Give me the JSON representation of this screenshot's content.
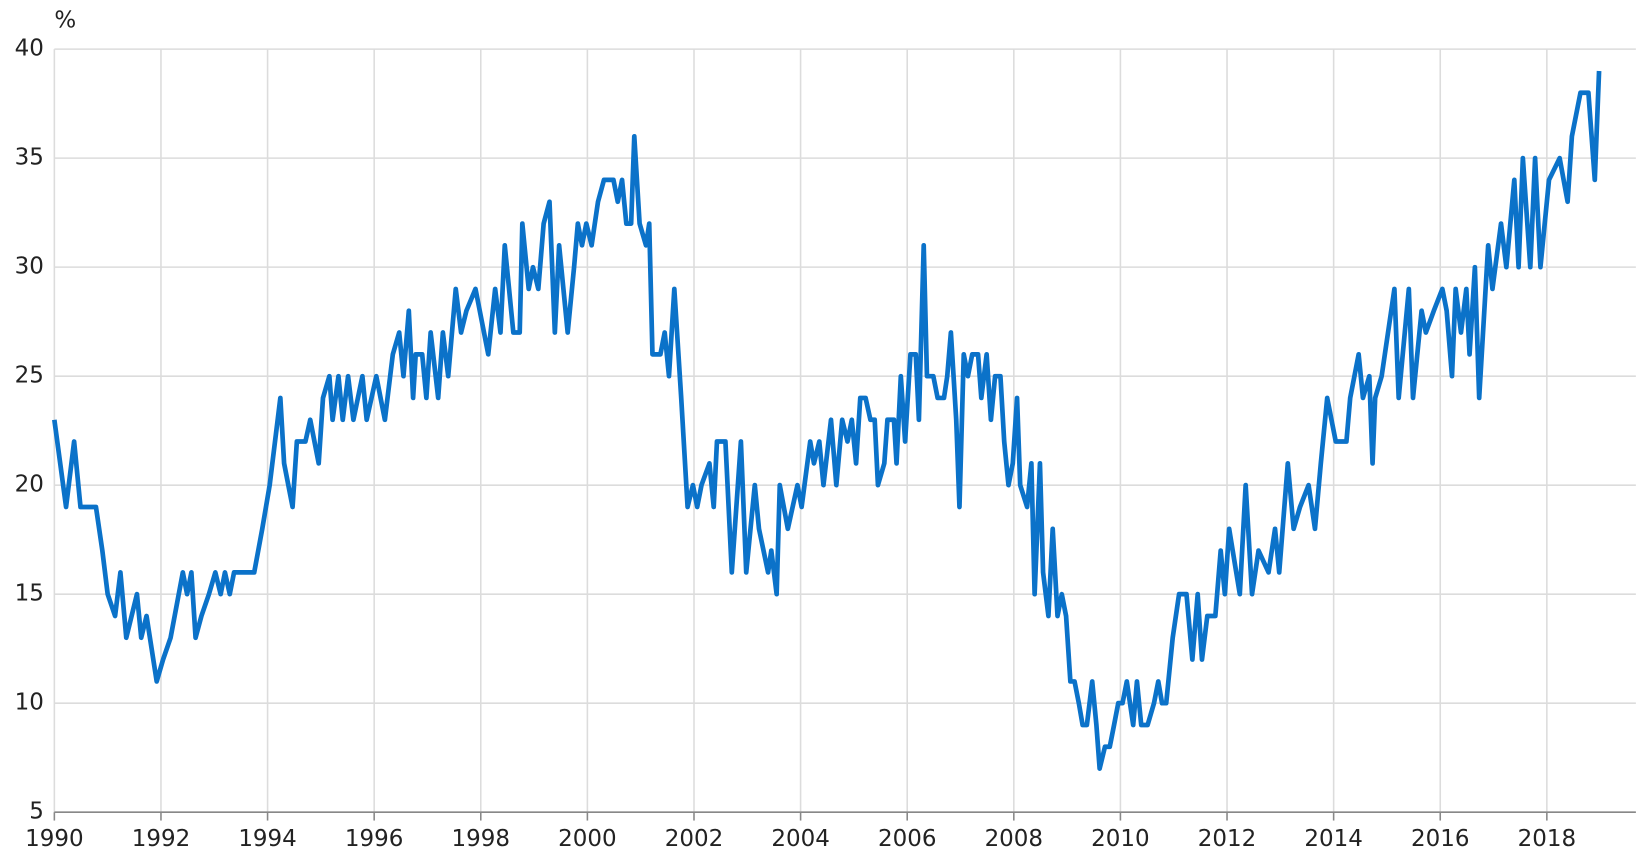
{
  "chart_data": {
    "type": "line",
    "y_unit": "%",
    "x": [
      1990.0,
      1990.22,
      1990.37,
      1990.49,
      1990.78,
      1990.9,
      1991.0,
      1991.14,
      1991.24,
      1991.35,
      1991.55,
      1991.63,
      1991.73,
      1991.92,
      1992.04,
      1992.18,
      1992.41,
      1992.49,
      1992.57,
      1992.65,
      1992.76,
      1992.9,
      1993.02,
      1993.12,
      1993.2,
      1993.29,
      1993.37,
      1993.75,
      1993.9,
      1994.04,
      1994.24,
      1994.31,
      1994.47,
      1994.55,
      1994.71,
      1994.8,
      1994.96,
      1995.04,
      1995.16,
      1995.22,
      1995.33,
      1995.41,
      1995.51,
      1995.61,
      1995.78,
      1995.86,
      1996.04,
      1996.2,
      1996.35,
      1996.47,
      1996.55,
      1996.65,
      1996.73,
      1996.78,
      1996.9,
      1996.98,
      1997.06,
      1997.2,
      1997.29,
      1997.39,
      1997.53,
      1997.63,
      1997.73,
      1997.9,
      1998.14,
      1998.27,
      1998.37,
      1998.45,
      1998.61,
      1998.73,
      1998.78,
      1998.9,
      1998.98,
      1999.08,
      1999.18,
      1999.29,
      1999.39,
      1999.47,
      1999.63,
      1999.75,
      1999.82,
      1999.9,
      1999.98,
      2000.08,
      2000.2,
      2000.31,
      2000.49,
      2000.57,
      2000.65,
      2000.73,
      2000.82,
      2000.88,
      2000.98,
      2001.1,
      2001.16,
      2001.22,
      2001.37,
      2001.45,
      2001.53,
      2001.63,
      2001.76,
      2001.88,
      2001.98,
      2002.06,
      2002.14,
      2002.29,
      2002.37,
      2002.43,
      2002.59,
      2002.71,
      2002.88,
      2002.98,
      2003.14,
      2003.22,
      2003.39,
      2003.45,
      2003.55,
      2003.61,
      2003.76,
      2003.94,
      2004.02,
      2004.18,
      2004.25,
      2004.35,
      2004.43,
      2004.57,
      2004.67,
      2004.78,
      2004.88,
      2004.96,
      2005.04,
      2005.12,
      2005.22,
      2005.31,
      2005.39,
      2005.45,
      2005.57,
      2005.63,
      2005.75,
      2005.8,
      2005.88,
      2005.96,
      2006.06,
      2006.16,
      2006.22,
      2006.31,
      2006.37,
      2006.49,
      2006.57,
      2006.69,
      2006.75,
      2006.82,
      2006.92,
      2006.98,
      2007.06,
      2007.14,
      2007.22,
      2007.33,
      2007.39,
      2007.49,
      2007.57,
      2007.65,
      2007.75,
      2007.82,
      2007.9,
      2007.98,
      2008.06,
      2008.12,
      2008.25,
      2008.33,
      2008.39,
      2008.49,
      2008.55,
      2008.65,
      2008.73,
      2008.82,
      2008.9,
      2008.98,
      2009.06,
      2009.14,
      2009.22,
      2009.29,
      2009.37,
      2009.47,
      2009.55,
      2009.61,
      2009.71,
      2009.8,
      2009.88,
      2009.96,
      2010.04,
      2010.12,
      2010.24,
      2010.31,
      2010.39,
      2010.51,
      2010.63,
      2010.71,
      2010.78,
      2010.86,
      2010.98,
      2011.1,
      2011.24,
      2011.35,
      2011.45,
      2011.53,
      2011.63,
      2011.78,
      2011.88,
      2011.96,
      2012.04,
      2012.24,
      2012.35,
      2012.47,
      2012.59,
      2012.78,
      2012.9,
      2012.98,
      2013.14,
      2013.25,
      2013.37,
      2013.53,
      2013.65,
      2013.76,
      2013.88,
      2014.04,
      2014.24,
      2014.31,
      2014.47,
      2014.55,
      2014.67,
      2014.73,
      2014.78,
      2014.9,
      2015.14,
      2015.22,
      2015.41,
      2015.49,
      2015.65,
      2015.73,
      2015.88,
      2016.04,
      2016.12,
      2016.22,
      2016.29,
      2016.39,
      2016.49,
      2016.55,
      2016.65,
      2016.73,
      2016.9,
      2016.98,
      2017.14,
      2017.24,
      2017.39,
      2017.47,
      2017.55,
      2017.69,
      2017.78,
      2017.88,
      2018.04,
      2018.24,
      2018.39,
      2018.47,
      2018.63,
      2018.78,
      2018.9,
      2018.98
    ],
    "series": [
      {
        "color": "#0b72c9",
        "values": [
          23,
          19,
          22,
          19,
          19,
          17,
          15,
          14,
          16,
          13,
          15,
          13,
          14,
          11,
          12,
          13,
          16,
          15,
          16,
          13,
          14,
          15,
          16,
          15,
          16,
          15,
          16,
          16,
          18,
          20,
          24,
          21,
          19,
          22,
          22,
          23,
          21,
          24,
          25,
          23,
          25,
          23,
          25,
          23,
          25,
          23,
          25,
          23,
          26,
          27,
          25,
          28,
          24,
          26,
          26,
          24,
          27,
          24,
          27,
          25,
          29,
          27,
          28,
          29,
          26,
          29,
          27,
          31,
          27,
          27,
          32,
          29,
          30,
          29,
          32,
          33,
          27,
          31,
          27,
          30,
          32,
          31,
          32,
          31,
          33,
          34,
          34,
          33,
          34,
          32,
          32,
          36,
          32,
          31,
          32,
          26,
          26,
          27,
          25,
          29,
          24,
          19,
          20,
          19,
          20,
          21,
          19,
          22,
          22,
          16,
          22,
          16,
          20,
          18,
          16,
          17,
          15,
          20,
          18,
          20,
          19,
          22,
          21,
          22,
          20,
          23,
          20,
          23,
          22,
          23,
          21,
          24,
          24,
          23,
          23,
          20,
          21,
          23,
          23,
          21,
          25,
          22,
          26,
          26,
          23,
          31,
          25,
          25,
          24,
          24,
          25,
          27,
          23,
          19,
          26,
          25,
          26,
          26,
          24,
          26,
          23,
          25,
          25,
          22,
          20,
          21,
          24,
          20,
          19,
          21,
          15,
          21,
          16,
          14,
          18,
          14,
          15,
          14,
          11,
          11,
          10,
          9,
          9,
          11,
          9,
          7,
          8,
          8,
          9,
          10,
          10,
          11,
          9,
          11,
          9,
          9,
          10,
          11,
          10,
          10,
          13,
          15,
          15,
          12,
          15,
          12,
          14,
          14,
          17,
          15,
          18,
          15,
          20,
          15,
          17,
          16,
          18,
          16,
          21,
          18,
          19,
          20,
          18,
          21,
          24,
          22,
          22,
          24,
          26,
          24,
          25,
          21,
          24,
          25,
          29,
          24,
          29,
          24,
          28,
          27,
          28,
          29,
          28,
          25,
          29,
          27,
          29,
          26,
          30,
          24,
          31,
          29,
          32,
          30,
          34,
          30,
          35,
          30,
          35,
          30,
          34,
          35,
          33,
          36,
          38,
          38,
          34,
          39
        ]
      }
    ],
    "xlim": [
      1990,
      2019.67
    ],
    "xticks": [
      1990,
      1992,
      1994,
      1996,
      1998,
      2000,
      2002,
      2004,
      2006,
      2008,
      2010,
      2012,
      2014,
      2016,
      2018
    ],
    "ylim": [
      5,
      40
    ],
    "yticks": [
      5,
      10,
      15,
      20,
      25,
      30,
      35,
      40
    ],
    "grid": true
  }
}
